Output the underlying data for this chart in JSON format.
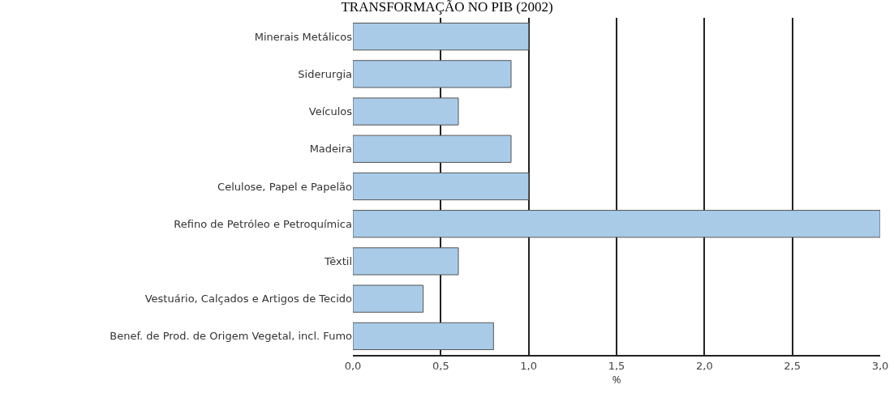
{
  "chart_data": {
    "type": "bar",
    "orientation": "horizontal",
    "title": "TRANSFORMAÇÃO NO PIB (2002)",
    "xlabel": "%",
    "categories": [
      "Minerais Metálicos",
      "Siderurgia",
      "Veículos",
      "Madeira",
      "Celulose, Papel e Papelão",
      "Refino de Petróleo e Petroquímica",
      "Têxtil",
      "Vestuário, Calçados e Artigos de Tecido",
      "Benef. de Prod. de Origem Vegetal, incl. Fumo"
    ],
    "values": [
      1.0,
      0.9,
      0.6,
      0.9,
      1.0,
      3.0,
      0.6,
      0.4,
      0.8
    ],
    "color": "#a9cbe8",
    "xlim": [
      0,
      3
    ],
    "xticks": [
      {
        "value": 0,
        "label": "0,0"
      },
      {
        "value": 0.5,
        "label": "0,5"
      },
      {
        "value": 1,
        "label": "1,0"
      },
      {
        "value": 1.5,
        "label": "1,5"
      },
      {
        "value": 2,
        "label": "2,0"
      },
      {
        "value": 2.5,
        "label": "2,5"
      },
      {
        "value": 3,
        "label": "3,0"
      }
    ],
    "grid": "x"
  }
}
